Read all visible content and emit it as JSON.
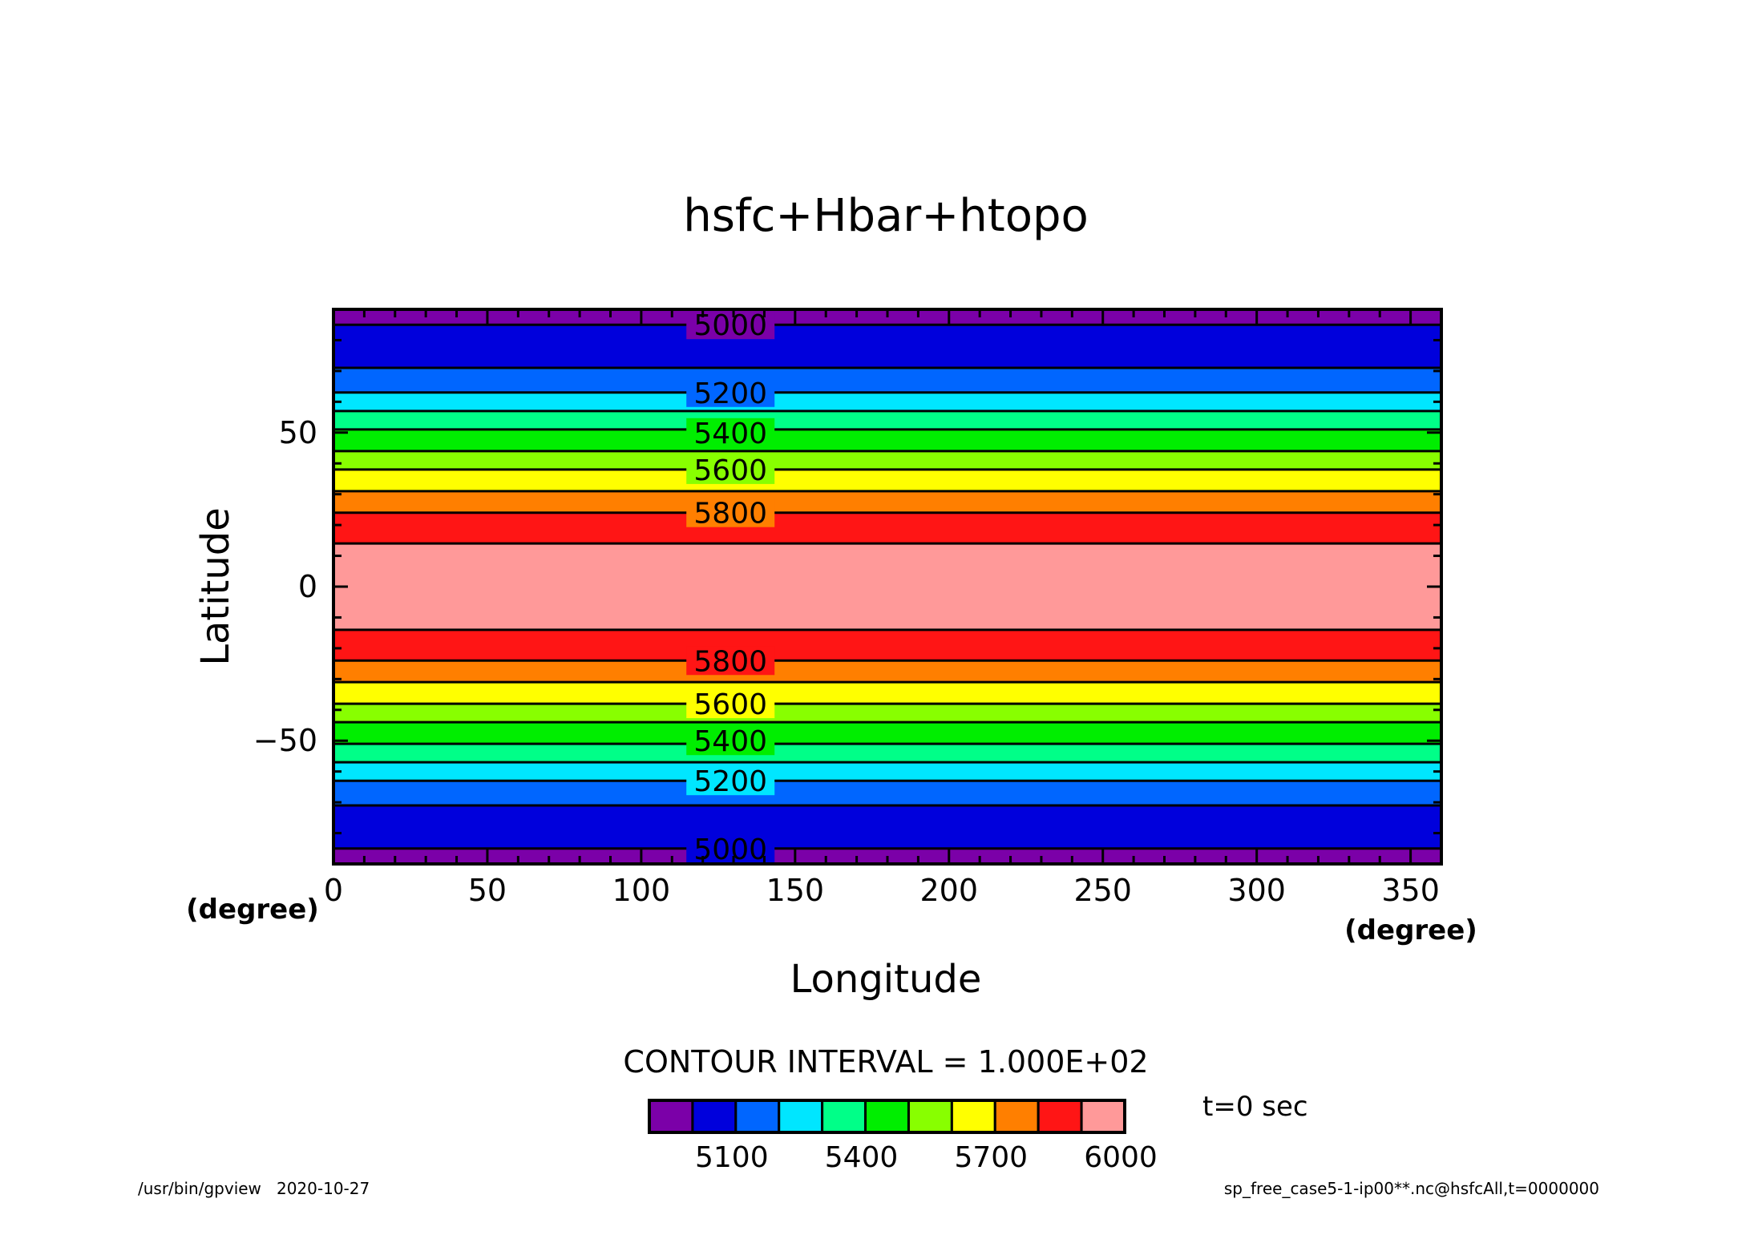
{
  "chart_data": {
    "type": "heatmap",
    "title": "hsfc+Hbar+htopo",
    "xlabel": "Longitude",
    "ylabel": "Latitude",
    "x_unit": "(degree)",
    "y_unit": "(degree)",
    "xlim": [
      0,
      360
    ],
    "ylim": [
      -90,
      90
    ],
    "x_ticks": [
      "0",
      "50",
      "100",
      "150",
      "200",
      "250",
      "300",
      "350"
    ],
    "y_ticks": [
      "50",
      "0",
      "−50"
    ],
    "bands": [
      {
        "lat_from": 90,
        "lat_to": 85,
        "color": "#7b00a8"
      },
      {
        "lat_from": 85,
        "lat_to": 71,
        "color": "#0000dc"
      },
      {
        "lat_from": 71,
        "lat_to": 63,
        "color": "#0066ff"
      },
      {
        "lat_from": 63,
        "lat_to": 57,
        "color": "#00e6ff"
      },
      {
        "lat_from": 57,
        "lat_to": 51,
        "color": "#00ff88"
      },
      {
        "lat_from": 51,
        "lat_to": 44,
        "color": "#00ee00"
      },
      {
        "lat_from": 44,
        "lat_to": 38,
        "color": "#88ff00"
      },
      {
        "lat_from": 38,
        "lat_to": 31,
        "color": "#ffff00"
      },
      {
        "lat_from": 31,
        "lat_to": 24,
        "color": "#ff7f00"
      },
      {
        "lat_from": 24,
        "lat_to": 14,
        "color": "#ff1515"
      },
      {
        "lat_from": 14,
        "lat_to": -14,
        "color": "#ff9999"
      },
      {
        "lat_from": -14,
        "lat_to": -24,
        "color": "#ff1515"
      },
      {
        "lat_from": -24,
        "lat_to": -31,
        "color": "#ff7f00"
      },
      {
        "lat_from": -31,
        "lat_to": -38,
        "color": "#ffff00"
      },
      {
        "lat_from": -38,
        "lat_to": -44,
        "color": "#88ff00"
      },
      {
        "lat_from": -44,
        "lat_to": -51,
        "color": "#00ee00"
      },
      {
        "lat_from": -51,
        "lat_to": -57,
        "color": "#00ff88"
      },
      {
        "lat_from": -57,
        "lat_to": -63,
        "color": "#00e6ff"
      },
      {
        "lat_from": -63,
        "lat_to": -71,
        "color": "#0066ff"
      },
      {
        "lat_from": -71,
        "lat_to": -85,
        "color": "#0000dc"
      },
      {
        "lat_from": -85,
        "lat_to": -90,
        "color": "#7b00a8"
      }
    ],
    "contour_lines": [
      85,
      71,
      63,
      57,
      51,
      44,
      38,
      31,
      24,
      14,
      -14,
      -24,
      -31,
      -38,
      -44,
      -51,
      -57,
      -63,
      -71,
      -85
    ],
    "contour_labels": [
      {
        "text": "5000",
        "lat": 85,
        "lon": 129
      },
      {
        "text": "5200",
        "lat": 63,
        "lon": 129
      },
      {
        "text": "5400",
        "lat": 50,
        "lon": 129
      },
      {
        "text": "5600",
        "lat": 38,
        "lon": 129
      },
      {
        "text": "5800",
        "lat": 24,
        "lon": 129
      },
      {
        "text": "5800",
        "lat": -24,
        "lon": 129
      },
      {
        "text": "5600",
        "lat": -38,
        "lon": 129
      },
      {
        "text": "5400",
        "lat": -50,
        "lon": 129
      },
      {
        "text": "5200",
        "lat": -63,
        "lon": 129
      },
      {
        "text": "5000",
        "lat": -85,
        "lon": 129
      }
    ],
    "contour_interval": "CONTOUR INTERVAL = 1.000E+02",
    "colorbar": {
      "colors": [
        "#7b00a8",
        "#0000dc",
        "#0066ff",
        "#00e6ff",
        "#00ff88",
        "#00ee00",
        "#88ff00",
        "#ffff00",
        "#ff7f00",
        "#ff1515",
        "#ff9999"
      ],
      "tick_labels": [
        "5100",
        "5400",
        "5700",
        "6000"
      ],
      "tick_positions": [
        2,
        5,
        8,
        11
      ]
    },
    "time_label": "t=0 sec"
  },
  "footer": {
    "left": "/usr/bin/gpview   2020-10-27",
    "right": "sp_free_case5-1-ip00**.nc@hsfcAll,t=0000000"
  }
}
